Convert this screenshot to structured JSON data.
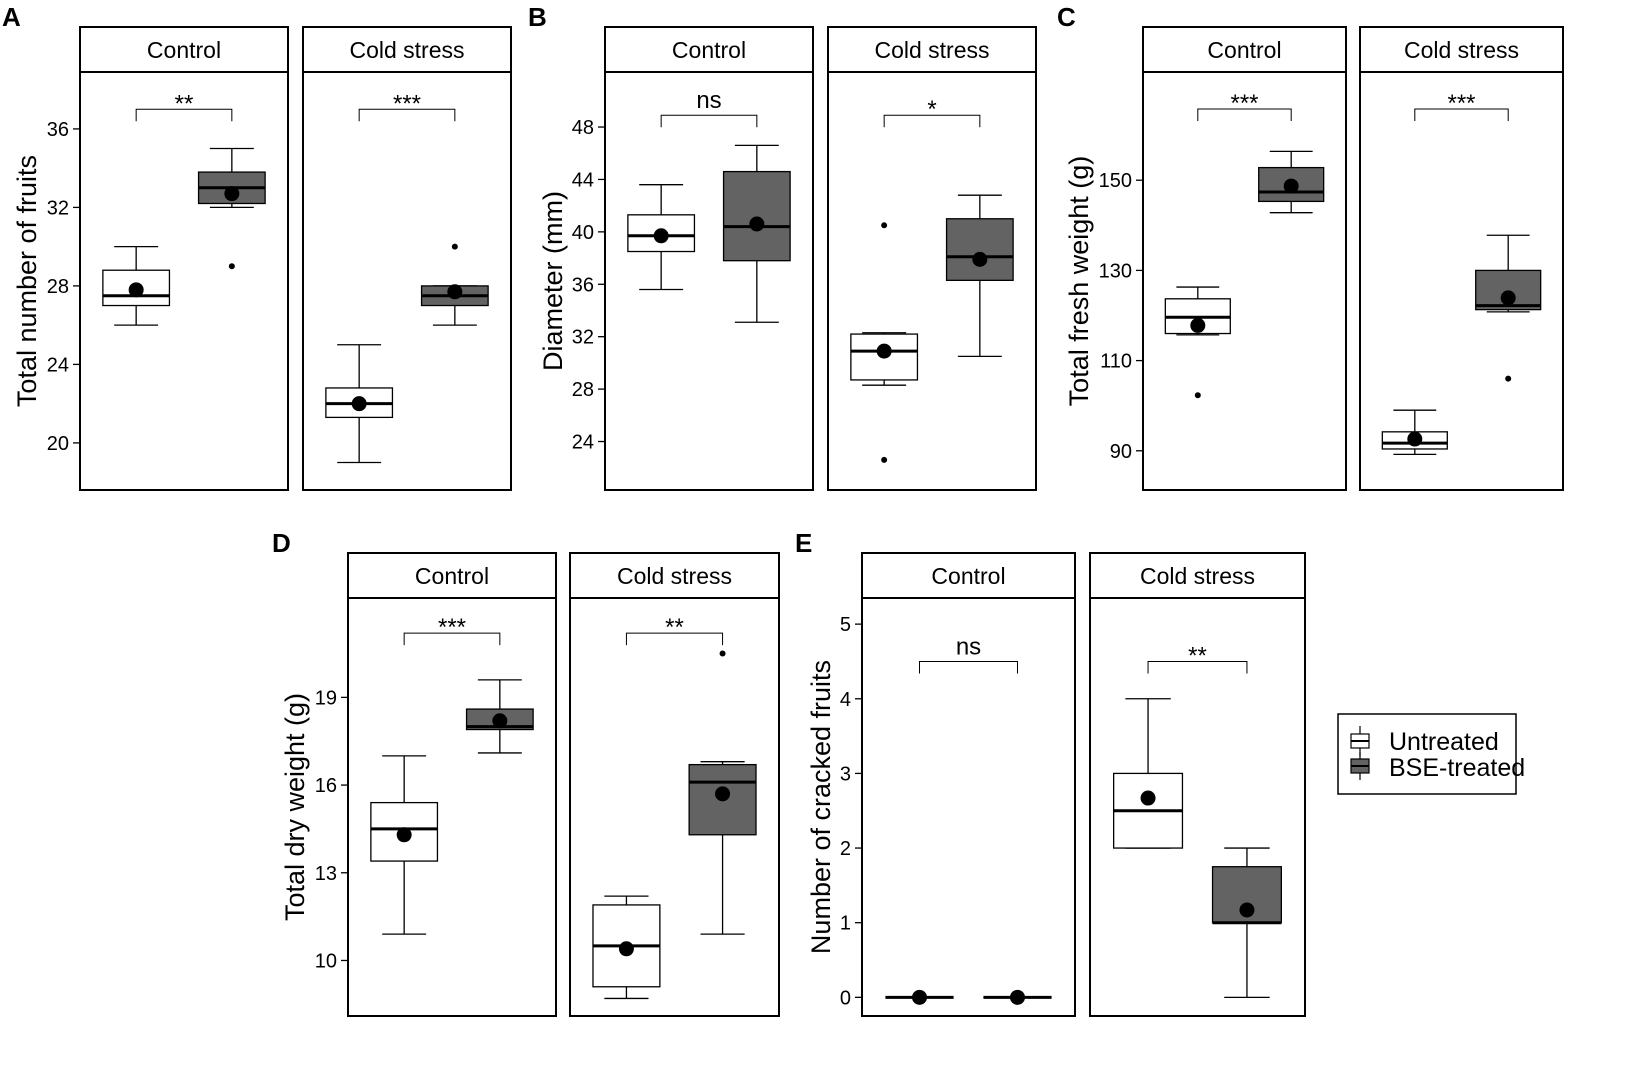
{
  "legend": {
    "items": [
      {
        "label": "Untreated",
        "color": "#ffffff"
      },
      {
        "label": "BSE-treated",
        "color": "#636363"
      }
    ]
  },
  "colors": {
    "untreated": "#ffffff",
    "treated": "#636363",
    "outline": "#000000"
  },
  "chart_data": [
    {
      "id": "A",
      "type": "box",
      "letter": "A",
      "ylabel": "Total number of fruits",
      "ylim": [
        17.6,
        38.9
      ],
      "yticks": [
        20,
        24,
        28,
        32,
        36
      ],
      "facets": [
        {
          "label": "Control",
          "groups": [
            {
              "name": "Untreated",
              "q1": 27.0,
              "median": 27.5,
              "q3": 28.8,
              "whisker_low": 26.0,
              "whisker_high": 30.0,
              "mean": 27.8,
              "outliers": []
            },
            {
              "name": "BSE-treated",
              "q1": 32.2,
              "median": 33.0,
              "q3": 33.8,
              "whisker_low": 32.0,
              "whisker_high": 35.0,
              "mean": 32.7,
              "outliers": [
                29.0
              ]
            }
          ],
          "sig": "**",
          "bracket_y": 37.0
        },
        {
          "label": "Cold stress",
          "groups": [
            {
              "name": "Untreated",
              "q1": 21.3,
              "median": 22.0,
              "q3": 22.8,
              "whisker_low": 19.0,
              "whisker_high": 25.0,
              "mean": 22.0,
              "outliers": []
            },
            {
              "name": "BSE-treated",
              "q1": 27.0,
              "median": 27.5,
              "q3": 28.0,
              "whisker_low": 26.0,
              "whisker_high": 28.0,
              "mean": 27.7,
              "outliers": [
                30.0
              ]
            }
          ],
          "sig": "***",
          "bracket_y": 37.0
        }
      ]
    },
    {
      "id": "B",
      "type": "box",
      "letter": "B",
      "ylabel": "Diameter (mm)",
      "ylim": [
        20.3,
        52.2
      ],
      "yticks": [
        24,
        28,
        32,
        36,
        40,
        44,
        48
      ],
      "facets": [
        {
          "label": "Control",
          "groups": [
            {
              "name": "Untreated",
              "q1": 38.5,
              "median": 39.7,
              "q3": 41.3,
              "whisker_low": 35.6,
              "whisker_high": 43.6,
              "mean": 39.7,
              "outliers": []
            },
            {
              "name": "BSE-treated",
              "q1": 37.8,
              "median": 40.4,
              "q3": 44.6,
              "whisker_low": 33.1,
              "whisker_high": 46.6,
              "mean": 40.6,
              "outliers": []
            }
          ],
          "sig": "ns",
          "bracket_y": 48.9
        },
        {
          "label": "Cold stress",
          "groups": [
            {
              "name": "Untreated",
              "q1": 28.7,
              "median": 30.9,
              "q3": 32.2,
              "whisker_low": 28.3,
              "whisker_high": 32.3,
              "mean": 30.9,
              "outliers": [
                40.5,
                22.6
              ]
            },
            {
              "name": "BSE-treated",
              "q1": 36.3,
              "median": 38.1,
              "q3": 41.0,
              "whisker_low": 30.5,
              "whisker_high": 42.8,
              "mean": 37.9,
              "outliers": []
            }
          ],
          "sig": "*",
          "bracket_y": 48.9
        }
      ]
    },
    {
      "id": "C",
      "type": "box",
      "letter": "C",
      "ylabel": "Total fresh weight (g)",
      "ylim": [
        81.3,
        174.0
      ],
      "yticks": [
        90,
        110,
        130,
        150
      ],
      "facets": [
        {
          "label": "Control",
          "groups": [
            {
              "name": "Untreated",
              "q1": 116.0,
              "median": 119.6,
              "q3": 123.7,
              "whisker_low": 115.7,
              "whisker_high": 126.3,
              "mean": 117.8,
              "outliers": [
                102.3
              ]
            },
            {
              "name": "BSE-treated",
              "q1": 145.3,
              "median": 147.4,
              "q3": 152.8,
              "whisker_low": 142.8,
              "whisker_high": 156.4,
              "mean": 148.7,
              "outliers": []
            }
          ],
          "sig": "***",
          "bracket_y": 165.8
        },
        {
          "label": "Cold stress",
          "groups": [
            {
              "name": "Untreated",
              "q1": 90.4,
              "median": 91.7,
              "q3": 94.2,
              "whisker_low": 89.2,
              "whisker_high": 99.0,
              "mean": 92.6,
              "outliers": []
            },
            {
              "name": "BSE-treated",
              "q1": 121.3,
              "median": 122.2,
              "q3": 130.0,
              "whisker_low": 120.8,
              "whisker_high": 137.8,
              "mean": 123.9,
              "outliers": [
                106.0
              ]
            }
          ],
          "sig": "***",
          "bracket_y": 165.8
        }
      ]
    },
    {
      "id": "D",
      "type": "box",
      "letter": "D",
      "ylabel": "Total dry weight (g)",
      "ylim": [
        8.1,
        22.4
      ],
      "yticks": [
        10,
        13,
        16,
        19
      ],
      "facets": [
        {
          "label": "Control",
          "groups": [
            {
              "name": "Untreated",
              "q1": 13.4,
              "median": 14.5,
              "q3": 15.4,
              "whisker_low": 10.9,
              "whisker_high": 17.0,
              "mean": 14.3,
              "outliers": []
            },
            {
              "name": "BSE-treated",
              "q1": 17.9,
              "median": 18.0,
              "q3": 18.6,
              "whisker_low": 17.1,
              "whisker_high": 19.6,
              "mean": 18.2,
              "outliers": []
            }
          ],
          "sig": "***",
          "bracket_y": 21.2
        },
        {
          "label": "Cold stress",
          "groups": [
            {
              "name": "Untreated",
              "q1": 9.1,
              "median": 10.5,
              "q3": 11.9,
              "whisker_low": 8.7,
              "whisker_high": 12.2,
              "mean": 10.4,
              "outliers": []
            },
            {
              "name": "BSE-treated",
              "q1": 14.3,
              "median": 16.1,
              "q3": 16.7,
              "whisker_low": 10.9,
              "whisker_high": 16.8,
              "mean": 15.7,
              "outliers": [
                20.5
              ]
            }
          ],
          "sig": "**",
          "bracket_y": 21.2
        }
      ]
    },
    {
      "id": "E",
      "type": "box",
      "letter": "E",
      "ylabel": "Number of cracked fruits",
      "ylim": [
        -0.25,
        5.35
      ],
      "yticks": [
        0,
        1,
        2,
        3,
        4,
        5
      ],
      "facets": [
        {
          "label": "Control",
          "groups": [
            {
              "name": "Untreated",
              "q1": 0,
              "median": 0,
              "q3": 0,
              "whisker_low": 0,
              "whisker_high": 0,
              "mean": 0,
              "outliers": []
            },
            {
              "name": "BSE-treated",
              "q1": 0,
              "median": 0,
              "q3": 0,
              "whisker_low": 0,
              "whisker_high": 0,
              "mean": 0,
              "outliers": []
            }
          ],
          "sig": "ns",
          "bracket_y": 4.5
        },
        {
          "label": "Cold stress",
          "groups": [
            {
              "name": "Untreated",
              "q1": 2.0,
              "median": 2.5,
              "q3": 3.0,
              "whisker_low": 2.0,
              "whisker_high": 4.0,
              "mean": 2.67,
              "outliers": []
            },
            {
              "name": "BSE-treated",
              "q1": 1.0,
              "median": 1.0,
              "q3": 1.75,
              "whisker_low": 0.0,
              "whisker_high": 2.0,
              "mean": 1.17,
              "outliers": []
            }
          ],
          "sig": "**",
          "bracket_y": 4.5
        }
      ]
    }
  ]
}
